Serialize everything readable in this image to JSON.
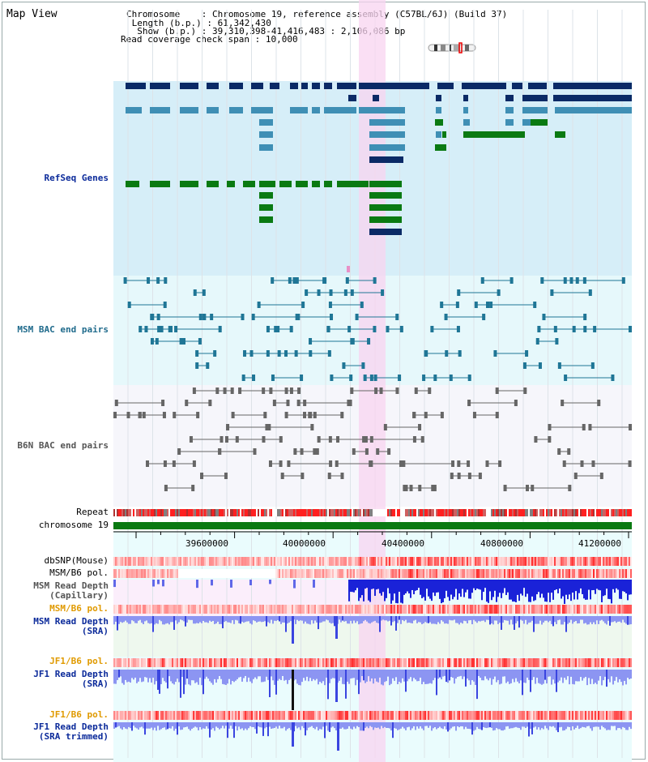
{
  "page": {
    "title": "Map View"
  },
  "info": {
    "chromosome_key": "Chromosome",
    "chromosome_val": "Chromosome 19, reference assembly (C57BL/6J) (Build 37)",
    "length_key": "Length (b.p.)",
    "length_val": "61,342,430",
    "show_key": "Show (b.p.)",
    "show_val": "39,310,398-41,416,483 : 2,106,086 bp",
    "coverage_key": "Read coverage check span",
    "coverage_val": "10,000"
  },
  "tracks": {
    "refseq": "RefSeq Genes",
    "msm_bac": "MSM BAC end pairs",
    "b6n_bac": "B6N BAC end pairs",
    "repeat": "Repeat",
    "chromosome": "chromosome 19",
    "dbsnp": "dbSNP(Mouse)",
    "msm_b6_pol_1": "MSM/B6 pol.",
    "msm_read_depth_cap_1": "MSM Read Depth",
    "msm_read_depth_cap_2": "(Capillary)",
    "msm_b6_pol_2": "MSM/B6 pol.",
    "msm_read_depth_sra_1": "MSM Read Depth",
    "msm_read_depth_sra_2": "(SRA)",
    "jf1_b6_pol_1": "JF1/B6 pol.",
    "jf1_read_depth_sra_1": "JF1 Read Depth",
    "jf1_read_depth_sra_2": "(SRA)",
    "jf1_b6_pol_2": "JF1/B6 pol.",
    "jf1_read_depth_trim_1": "JF1 Read Depth",
    "jf1_read_depth_trim_2": "(SRA trimmed)"
  },
  "axis": {
    "ticks": [
      "39600000",
      "40000000",
      "40400000",
      "40800000",
      "41200000"
    ]
  },
  "colors": {
    "refseq_bg": "#d6eef8",
    "msm_bac_bg": "#e6f8fb",
    "b6n_bac_bg": "#f6f6fb",
    "highlight": "#f8d4f0",
    "gene_navy": "#0a2a66",
    "gene_lightblue": "#3f8fb5",
    "gene_green": "#0a7a12",
    "bac_teal": "#1f7696",
    "bac_gray": "#666666",
    "chromosome_green": "#0a7a12",
    "depth_blue": "#3a45e0",
    "depth_light": "#8c95f2"
  }
}
